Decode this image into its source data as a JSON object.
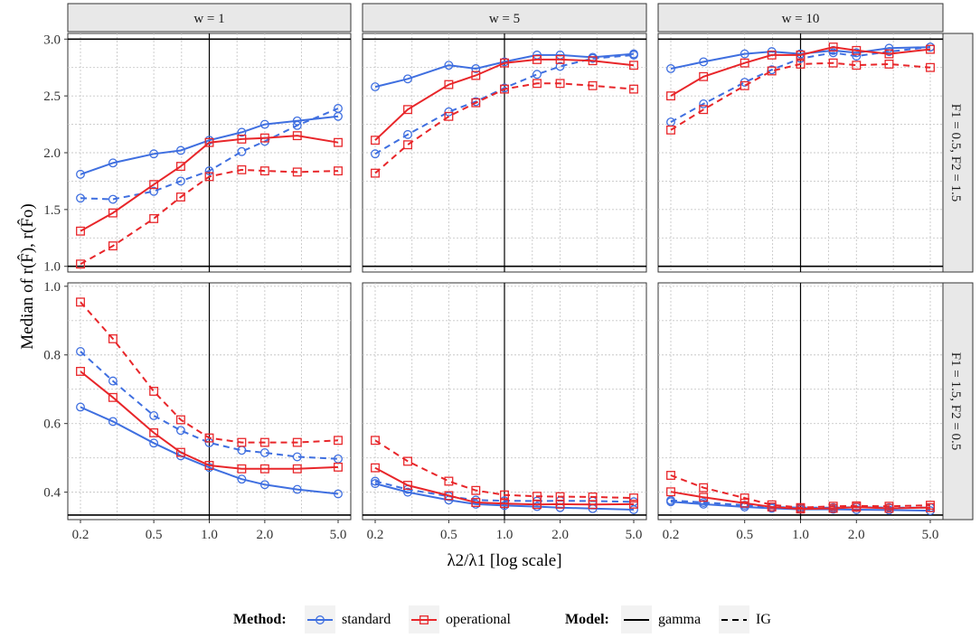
{
  "chart_data": {
    "type": "line",
    "facets": {
      "columns": [
        "w = 1",
        "w = 5",
        "w = 10"
      ],
      "rows": [
        "F1 = 0.5, F2 = 1.5",
        "F1 = 1.5, F2 = 0.5"
      ]
    },
    "x": [
      0.2,
      0.3,
      0.5,
      0.7,
      1.0,
      1.5,
      2.0,
      3.0,
      5.0
    ],
    "xscale": "log",
    "xticks": [
      0.2,
      0.5,
      1.0,
      2.0,
      5.0
    ],
    "xtick_labels": [
      "0.2",
      "0.5",
      "1.0",
      "2.0",
      "5.0"
    ],
    "xlabel": "λ2/λ1 [log scale]",
    "ylabel": "Median of r(F̂), r(F̂o)",
    "rows": [
      {
        "ylim": [
          0.95,
          3.05
        ],
        "yticks": [
          1.0,
          1.5,
          2.0,
          2.5,
          3.0
        ],
        "ytick_labels": [
          "1.0",
          "1.5",
          "2.0",
          "2.5",
          "3.0"
        ],
        "hlines": [
          1.0,
          3.0
        ]
      },
      {
        "ylim": [
          0.32,
          1.01
        ],
        "yticks": [
          0.4,
          0.6,
          0.8,
          1.0
        ],
        "ytick_labels": [
          "0.4",
          "0.6",
          "0.8",
          "1.0"
        ],
        "hlines": [
          0.3333
        ]
      }
    ],
    "vline": 1.0,
    "series": [
      {
        "panel": [
          0,
          0
        ],
        "method": "standard",
        "model": "gamma",
        "values": [
          1.81,
          1.91,
          1.99,
          2.02,
          2.11,
          2.18,
          2.25,
          2.28,
          2.32
        ]
      },
      {
        "panel": [
          0,
          0
        ],
        "method": "standard",
        "model": "IG",
        "values": [
          1.6,
          1.59,
          1.66,
          1.75,
          1.84,
          2.01,
          2.1,
          2.24,
          2.39
        ]
      },
      {
        "panel": [
          0,
          0
        ],
        "method": "operational",
        "model": "gamma",
        "values": [
          1.31,
          1.47,
          1.72,
          1.88,
          2.09,
          2.12,
          2.13,
          2.15,
          2.09
        ]
      },
      {
        "panel": [
          0,
          0
        ],
        "method": "operational",
        "model": "IG",
        "values": [
          1.02,
          1.18,
          1.42,
          1.61,
          1.79,
          1.85,
          1.84,
          1.83,
          1.84
        ]
      },
      {
        "panel": [
          0,
          1
        ],
        "method": "standard",
        "model": "gamma",
        "values": [
          2.58,
          2.65,
          2.77,
          2.74,
          2.8,
          2.86,
          2.86,
          2.84,
          2.87
        ]
      },
      {
        "panel": [
          0,
          1
        ],
        "method": "standard",
        "model": "IG",
        "values": [
          1.99,
          2.16,
          2.36,
          2.45,
          2.57,
          2.69,
          2.76,
          2.83,
          2.86
        ]
      },
      {
        "panel": [
          0,
          1
        ],
        "method": "operational",
        "model": "gamma",
        "values": [
          2.11,
          2.38,
          2.6,
          2.68,
          2.79,
          2.82,
          2.82,
          2.81,
          2.77
        ]
      },
      {
        "panel": [
          0,
          1
        ],
        "method": "operational",
        "model": "IG",
        "values": [
          1.82,
          2.07,
          2.32,
          2.44,
          2.56,
          2.61,
          2.61,
          2.59,
          2.56
        ]
      },
      {
        "panel": [
          0,
          2
        ],
        "method": "standard",
        "model": "gamma",
        "values": [
          2.74,
          2.8,
          2.87,
          2.89,
          2.87,
          2.9,
          2.88,
          2.92,
          2.93
        ]
      },
      {
        "panel": [
          0,
          2
        ],
        "method": "standard",
        "model": "IG",
        "values": [
          2.27,
          2.43,
          2.62,
          2.73,
          2.83,
          2.88,
          2.85,
          2.89,
          2.93
        ]
      },
      {
        "panel": [
          0,
          2
        ],
        "method": "operational",
        "model": "gamma",
        "values": [
          2.5,
          2.67,
          2.79,
          2.86,
          2.86,
          2.93,
          2.9,
          2.87,
          2.91
        ]
      },
      {
        "panel": [
          0,
          2
        ],
        "method": "operational",
        "model": "IG",
        "values": [
          2.2,
          2.38,
          2.59,
          2.72,
          2.78,
          2.79,
          2.77,
          2.78,
          2.75
        ]
      },
      {
        "panel": [
          1,
          0
        ],
        "method": "standard",
        "model": "gamma",
        "values": [
          0.648,
          0.606,
          0.543,
          0.506,
          0.472,
          0.438,
          0.422,
          0.408,
          0.395
        ]
      },
      {
        "panel": [
          1,
          0
        ],
        "method": "standard",
        "model": "IG",
        "values": [
          0.81,
          0.724,
          0.623,
          0.58,
          0.544,
          0.522,
          0.515,
          0.503,
          0.497
        ]
      },
      {
        "panel": [
          1,
          0
        ],
        "method": "operational",
        "model": "gamma",
        "values": [
          0.752,
          0.676,
          0.573,
          0.516,
          0.478,
          0.468,
          0.468,
          0.468,
          0.473
        ]
      },
      {
        "panel": [
          1,
          0
        ],
        "method": "operational",
        "model": "IG",
        "values": [
          0.954,
          0.847,
          0.694,
          0.611,
          0.558,
          0.545,
          0.545,
          0.545,
          0.551
        ]
      },
      {
        "panel": [
          1,
          1
        ],
        "method": "standard",
        "model": "gamma",
        "values": [
          0.425,
          0.4,
          0.377,
          0.365,
          0.361,
          0.358,
          0.355,
          0.352,
          0.349
        ]
      },
      {
        "panel": [
          1,
          1
        ],
        "method": "standard",
        "model": "IG",
        "values": [
          0.432,
          0.408,
          0.388,
          0.377,
          0.375,
          0.374,
          0.375,
          0.374,
          0.372
        ]
      },
      {
        "panel": [
          1,
          1
        ],
        "method": "operational",
        "model": "gamma",
        "values": [
          0.471,
          0.42,
          0.39,
          0.37,
          0.367,
          0.364,
          0.365,
          0.364,
          0.365
        ]
      },
      {
        "panel": [
          1,
          1
        ],
        "method": "operational",
        "model": "IG",
        "values": [
          0.551,
          0.49,
          0.432,
          0.405,
          0.392,
          0.388,
          0.387,
          0.386,
          0.383
        ]
      },
      {
        "panel": [
          1,
          2
        ],
        "method": "standard",
        "model": "gamma",
        "values": [
          0.372,
          0.365,
          0.357,
          0.353,
          0.35,
          0.35,
          0.349,
          0.348,
          0.346
        ]
      },
      {
        "panel": [
          1,
          2
        ],
        "method": "standard",
        "model": "IG",
        "values": [
          0.376,
          0.37,
          0.362,
          0.357,
          0.355,
          0.355,
          0.356,
          0.355,
          0.355
        ]
      },
      {
        "panel": [
          1,
          2
        ],
        "method": "operational",
        "model": "gamma",
        "values": [
          0.401,
          0.385,
          0.368,
          0.357,
          0.351,
          0.353,
          0.356,
          0.353,
          0.355
        ]
      },
      {
        "panel": [
          1,
          2
        ],
        "method": "operational",
        "model": "IG",
        "values": [
          0.449,
          0.413,
          0.383,
          0.363,
          0.355,
          0.359,
          0.36,
          0.359,
          0.362
        ]
      }
    ],
    "legend": {
      "position": "bottom",
      "method_title": "Method:",
      "model_title": "Model:",
      "methods": [
        {
          "name": "standard",
          "color": "#3f6fe0",
          "marker": "circle"
        },
        {
          "name": "operational",
          "color": "#e8262a",
          "marker": "square"
        }
      ],
      "models": [
        {
          "name": "gamma",
          "linestyle": "solid"
        },
        {
          "name": "IG",
          "linestyle": "dashed"
        }
      ]
    }
  }
}
